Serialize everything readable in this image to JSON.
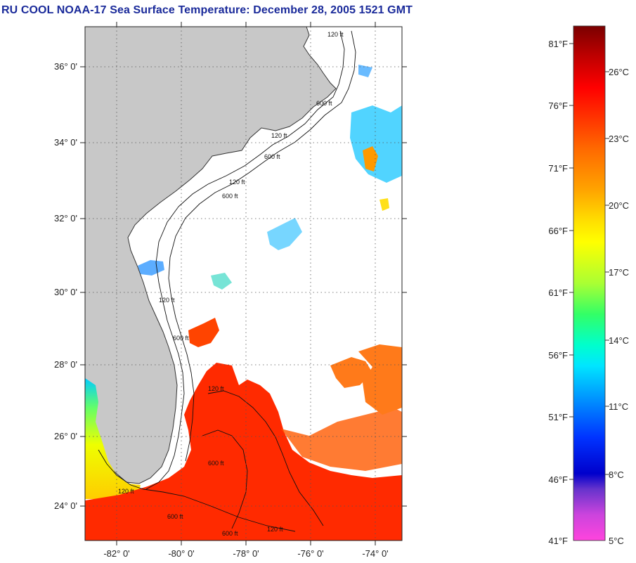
{
  "title": "RU COOL  NOAA-17  Sea Surface Temperature:  December 28, 2005 1521 GMT",
  "map": {
    "lat_labels": [
      "36° 0'",
      "34° 0'",
      "32° 0'",
      "30° 0'",
      "28° 0'",
      "26° 0'",
      "24° 0'"
    ],
    "lon_labels": [
      "-82° 0'",
      "-80° 0'",
      "-78° 0'",
      "-76° 0'",
      "-74° 0'"
    ],
    "contour_labels": [
      "120 ft",
      "600 ft",
      "120 ft",
      "600 ft",
      "120 ft",
      "600 ft",
      "120 ft",
      "600 ft",
      "120 ft",
      "600 ft",
      "120 ft",
      "600 ft",
      "120 ft",
      "600 ft"
    ],
    "colors": {
      "land": "#c8c8c8",
      "ocean_nodata": "#ffffff",
      "grid": "#555555"
    }
  },
  "colorbar": {
    "fahrenheit": [
      "81°F",
      "76°F",
      "71°F",
      "66°F",
      "61°F",
      "56°F",
      "51°F",
      "46°F",
      "41°F"
    ],
    "celsius": [
      "26°C",
      "23°C",
      "20°C",
      "17°C",
      "14°C",
      "11°C",
      "8°C",
      "5°C"
    ]
  }
}
